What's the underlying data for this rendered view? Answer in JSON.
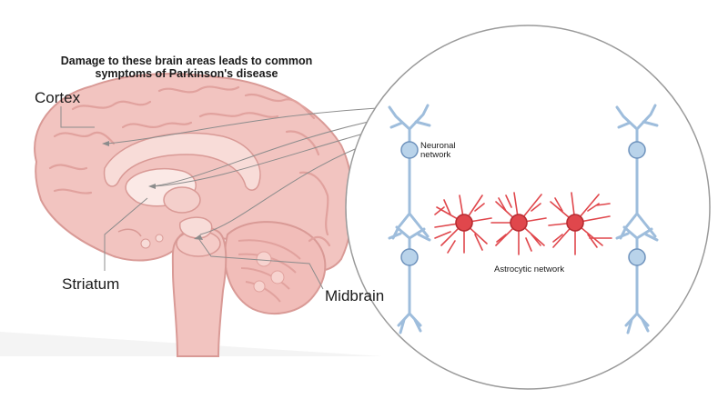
{
  "title": {
    "line1": "Damage to these brain areas leads to common",
    "line2": "symptoms of Parkinson's disease"
  },
  "labels": {
    "cortex": "Cortex",
    "striatum": "Striatum",
    "midbrain": "Midbrain"
  },
  "inset": {
    "neuronal": {
      "line1": "Neuronal",
      "line2": "network"
    },
    "astrocytic": "Astrocytic network"
  },
  "colors": {
    "brain_fill": "#f2c4c0",
    "brain_stroke": "#d99a96",
    "brain_shadow": "#e8aaa6",
    "neuron": "#9ebddc",
    "neuron_dark": "#6f93bd",
    "astrocyte": "#e0474c",
    "astrocyte_dark": "#b72c32",
    "line": "#8c8c8c",
    "text": "#1a1a1a"
  }
}
